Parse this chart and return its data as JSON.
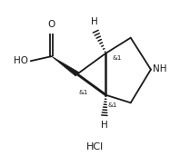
{
  "bg_color": "#ffffff",
  "line_color": "#1a1a1a",
  "text_color": "#1a1a1a",
  "hcl_text": "HCl",
  "ho_text": "HO",
  "o_text": "O",
  "nh_text": "NH",
  "h_top_text": "H",
  "h_bot_text": "H",
  "stereo1_text": "&1",
  "stereo2_text": "&1",
  "stereo3_text": "&1",
  "figsize": [
    2.09,
    1.72
  ],
  "dpi": 100,
  "lw": 1.3
}
